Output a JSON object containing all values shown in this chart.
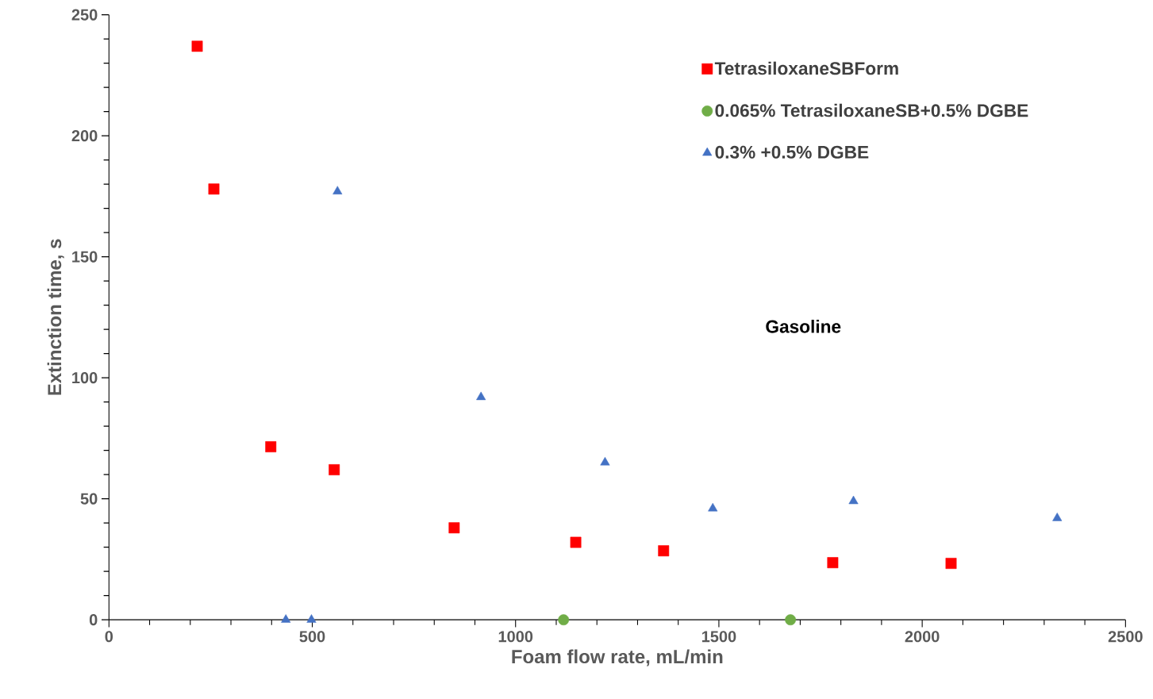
{
  "chart_data": {
    "type": "scatter",
    "xlabel": "Foam flow rate, mL/min",
    "ylabel": "Extinction time, s",
    "annotations": [
      "Gasoline"
    ],
    "xlim": [
      0,
      2500
    ],
    "ylim": [
      0,
      250
    ],
    "xticks": [
      0,
      500,
      1000,
      1500,
      2000,
      2500
    ],
    "yticks": [
      0,
      50,
      100,
      150,
      200,
      250
    ],
    "grid": false,
    "legend": "top right",
    "series": [
      {
        "name": "TetrasiloxaneSBForm",
        "color": "#ff0000",
        "marker": "square",
        "x": [
          217,
          258,
          398,
          554,
          849,
          1148,
          1364,
          1780,
          2071
        ],
        "values": [
          237,
          178,
          71.5,
          62,
          38,
          32,
          28.5,
          23.6,
          23.3
        ]
      },
      {
        "name": "0.065% TetrasiloxaneSB+0.5% DGBE",
        "color": "#70ad47",
        "marker": "circle",
        "x": [
          1118,
          1676
        ],
        "values": [
          0,
          0
        ]
      },
      {
        "name": "0.3% +0.5% DGBE",
        "color": "#4472c4",
        "marker": "triangle",
        "x": [
          435,
          498,
          562,
          915,
          1220,
          1485,
          1831,
          2332
        ],
        "values": [
          0,
          0,
          177,
          92,
          65,
          46,
          49,
          42
        ]
      }
    ]
  }
}
